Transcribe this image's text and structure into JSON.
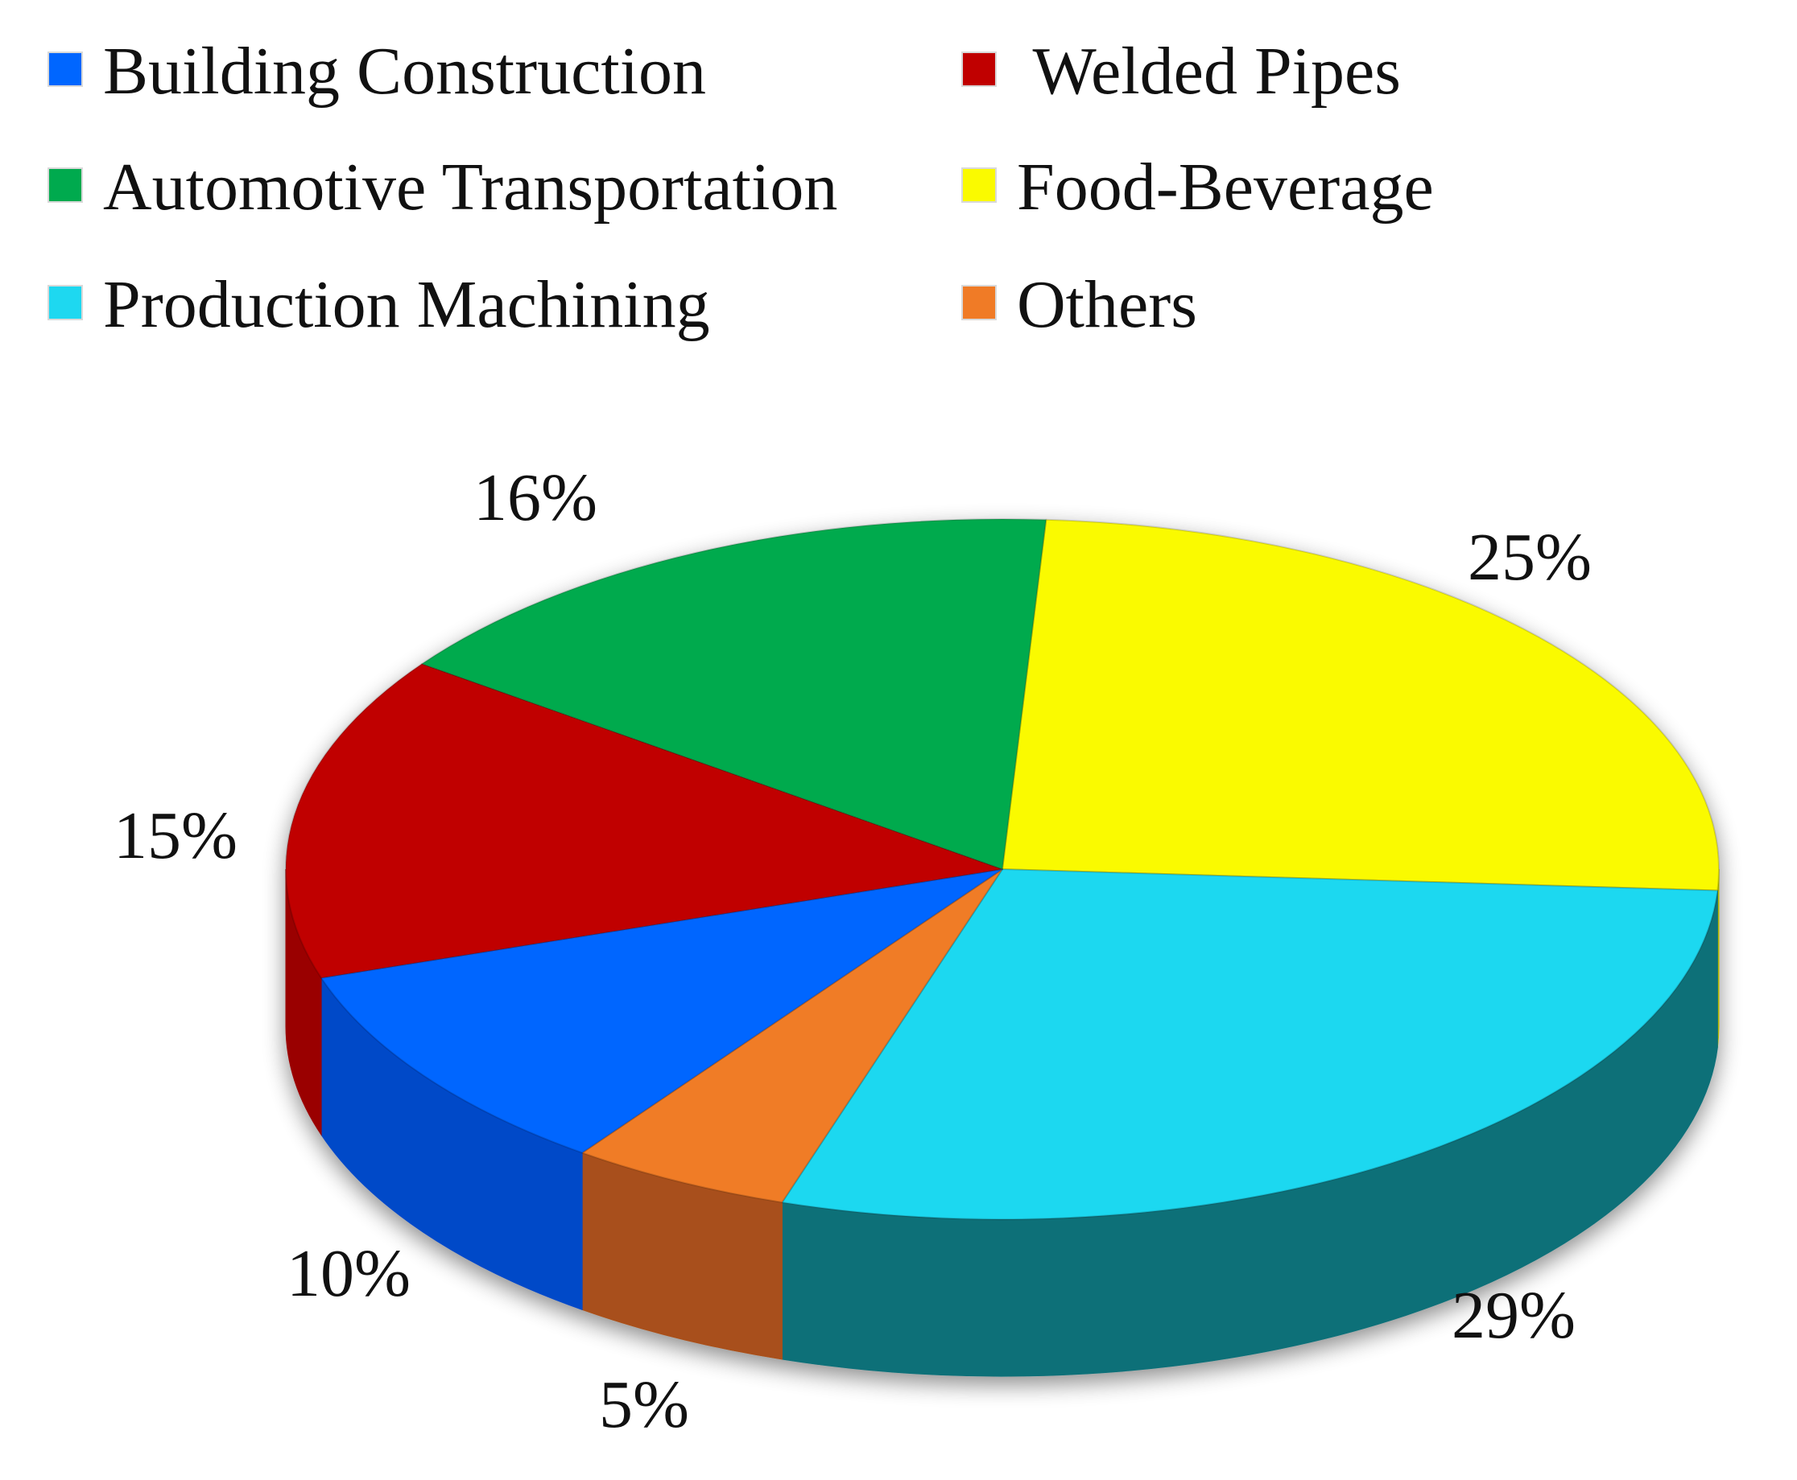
{
  "chart_data": {
    "type": "pie",
    "style": "3d",
    "title": "",
    "legend_position": "top",
    "slices": [
      {
        "label": "Food-Beverage",
        "value": 25,
        "value_label": "25%",
        "color": "#FAFA00",
        "side_color": "#B8B800"
      },
      {
        "label": "Production Machining",
        "value": 29,
        "value_label": "29%",
        "color": "#1ED8F0",
        "side_color": "#0E6F78"
      },
      {
        "label": "Others",
        "value": 5,
        "value_label": "5%",
        "color": "#F07B26",
        "side_color": "#A8501A"
      },
      {
        "label": "Building Construction",
        "value": 10,
        "value_label": "10%",
        "color": "#0066FF",
        "side_color": "#0048C8"
      },
      {
        "label": "Welded Pipes",
        "value": 15,
        "value_label": "15%",
        "color": "#C00000",
        "side_color": "#9A0000"
      },
      {
        "label": "Automotive Transportation",
        "value": 16,
        "value_label": "16%",
        "color": "#00AA4E",
        "side_color": "#00803A"
      }
    ],
    "legend": [
      {
        "label": "Building Construction",
        "color": "#0066FF"
      },
      {
        "label": " Welded Pipes",
        "color": "#C00000"
      },
      {
        "label": "Automotive Transportation",
        "color": "#00AA4E"
      },
      {
        "label": "Food-Beverage",
        "color": "#FAFA00"
      },
      {
        "label": "Production Machining",
        "color": "#1ED8F0"
      },
      {
        "label": "Others",
        "color": "#F07B26"
      }
    ]
  }
}
